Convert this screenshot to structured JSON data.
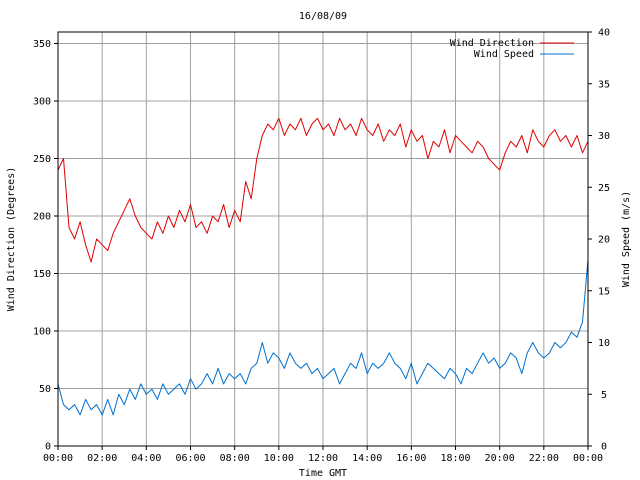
{
  "chart_data": {
    "type": "line",
    "title": "16/08/09",
    "xlabel": "Time GMT",
    "ylabel_left": "Wind Direction (Degrees)",
    "ylabel_right": "Wind Speed (m/s)",
    "x_tick_labels": [
      "00:00",
      "02:00",
      "04:00",
      "06:00",
      "08:00",
      "10:00",
      "12:00",
      "14:00",
      "16:00",
      "18:00",
      "20:00",
      "22:00",
      "00:00"
    ],
    "x_unit": "hours GMT",
    "xlim": [
      0,
      24
    ],
    "ylim_left": [
      0,
      360
    ],
    "ylim_right": [
      0,
      40
    ],
    "y_ticks_left": [
      0,
      50,
      100,
      150,
      200,
      250,
      300,
      350
    ],
    "y_ticks_right": [
      0,
      5,
      10,
      15,
      20,
      25,
      30,
      35,
      40
    ],
    "grid": true,
    "legend_position": "top-right",
    "series": [
      {
        "name": "Wind Direction",
        "axis": "left",
        "color": "#e00000",
        "x": [
          0,
          0.25,
          0.5,
          0.75,
          1,
          1.25,
          1.5,
          1.75,
          2,
          2.25,
          2.5,
          2.75,
          3,
          3.25,
          3.5,
          3.75,
          4,
          4.25,
          4.5,
          4.75,
          5,
          5.25,
          5.5,
          5.75,
          6,
          6.25,
          6.5,
          6.75,
          7,
          7.25,
          7.5,
          7.75,
          8,
          8.25,
          8.5,
          8.75,
          9,
          9.25,
          9.5,
          9.75,
          10,
          10.25,
          10.5,
          10.75,
          11,
          11.25,
          11.5,
          11.75,
          12,
          12.25,
          12.5,
          12.75,
          13,
          13.25,
          13.5,
          13.75,
          14,
          14.25,
          14.5,
          14.75,
          15,
          15.25,
          15.5,
          15.75,
          16,
          16.25,
          16.5,
          16.75,
          17,
          17.25,
          17.5,
          17.75,
          18,
          18.25,
          18.5,
          18.75,
          19,
          19.25,
          19.5,
          19.75,
          20,
          20.25,
          20.5,
          20.75,
          21,
          21.25,
          21.5,
          21.75,
          22,
          22.25,
          22.5,
          22.75,
          23,
          23.25,
          23.5,
          23.75,
          24
        ],
        "values": [
          240,
          250,
          190,
          180,
          195,
          175,
          160,
          180,
          175,
          170,
          185,
          195,
          205,
          215,
          200,
          190,
          185,
          180,
          195,
          185,
          200,
          190,
          205,
          195,
          210,
          190,
          195,
          185,
          200,
          195,
          210,
          190,
          205,
          195,
          230,
          215,
          250,
          270,
          280,
          275,
          285,
          270,
          280,
          275,
          285,
          270,
          280,
          285,
          275,
          280,
          270,
          285,
          275,
          280,
          270,
          285,
          275,
          270,
          280,
          265,
          275,
          270,
          280,
          260,
          275,
          265,
          270,
          250,
          265,
          260,
          275,
          255,
          270,
          265,
          260,
          255,
          265,
          260,
          250,
          245,
          240,
          255,
          265,
          260,
          270,
          255,
          275,
          265,
          260,
          270,
          275,
          265,
          270,
          260,
          270,
          255,
          265
        ]
      },
      {
        "name": "Wind Speed",
        "axis": "right",
        "color": "#0070d0",
        "x": [
          0,
          0.25,
          0.5,
          0.75,
          1,
          1.25,
          1.5,
          1.75,
          2,
          2.25,
          2.5,
          2.75,
          3,
          3.25,
          3.5,
          3.75,
          4,
          4.25,
          4.5,
          4.75,
          5,
          5.25,
          5.5,
          5.75,
          6,
          6.25,
          6.5,
          6.75,
          7,
          7.25,
          7.5,
          7.75,
          8,
          8.25,
          8.5,
          8.75,
          9,
          9.25,
          9.5,
          9.75,
          10,
          10.25,
          10.5,
          10.75,
          11,
          11.25,
          11.5,
          11.75,
          12,
          12.25,
          12.5,
          12.75,
          13,
          13.25,
          13.5,
          13.75,
          14,
          14.25,
          14.5,
          14.75,
          15,
          15.25,
          15.5,
          15.75,
          16,
          16.25,
          16.5,
          16.75,
          17,
          17.25,
          17.5,
          17.75,
          18,
          18.25,
          18.5,
          18.75,
          19,
          19.25,
          19.5,
          19.75,
          20,
          20.25,
          20.5,
          20.75,
          21,
          21.25,
          21.5,
          21.75,
          22,
          22.25,
          22.5,
          22.75,
          23,
          23.25,
          23.5,
          23.75,
          24
        ],
        "values": [
          6,
          4,
          3.5,
          4,
          3,
          4.5,
          3.5,
          4,
          3,
          4.5,
          3,
          5,
          4,
          5.5,
          4.5,
          6,
          5,
          5.5,
          4.5,
          6,
          5,
          5.5,
          6,
          5,
          6.5,
          5.5,
          6,
          7,
          6,
          7.5,
          6,
          7,
          6.5,
          7,
          6,
          7.5,
          8,
          10,
          8,
          9,
          8.5,
          7.5,
          9,
          8,
          7.5,
          8,
          7,
          7.5,
          6.5,
          7,
          7.5,
          6,
          7,
          8,
          7.5,
          9,
          7,
          8,
          7.5,
          8,
          9,
          8,
          7.5,
          6.5,
          8,
          6,
          7,
          8,
          7.5,
          7,
          6.5,
          7.5,
          7,
          6,
          7.5,
          7,
          8,
          9,
          8,
          8.5,
          7.5,
          8,
          9,
          8.5,
          7,
          9,
          10,
          9,
          8.5,
          9,
          10,
          9.5,
          10,
          11,
          10.5,
          12,
          18
        ]
      }
    ]
  }
}
